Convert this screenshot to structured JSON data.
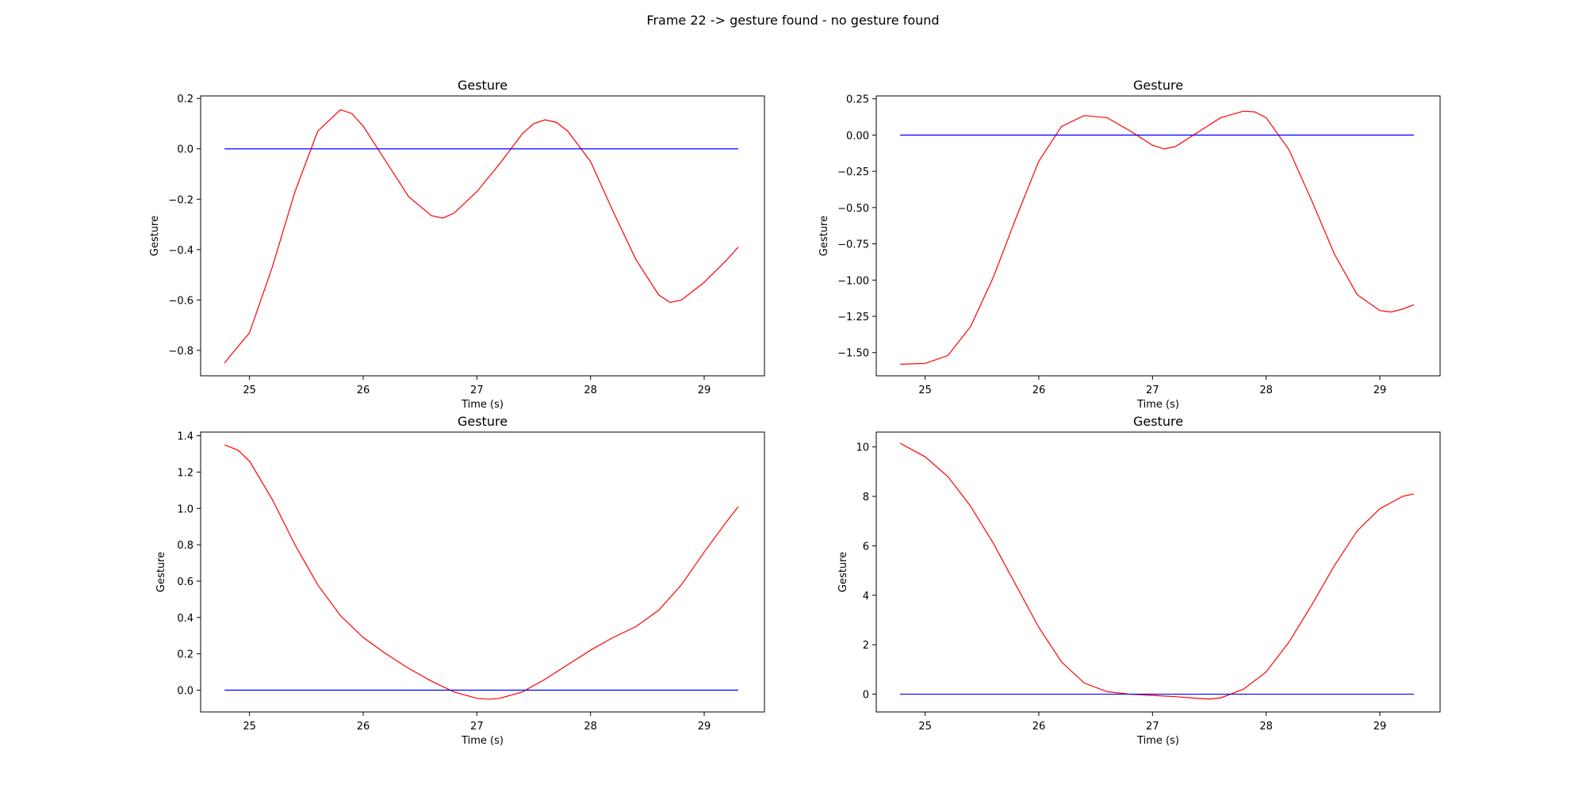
{
  "figure": {
    "suptitle": "Frame 22 -> gesture found - no gesture found"
  },
  "chart_data": [
    {
      "type": "line",
      "title": "Gesture",
      "xlabel": "Time (s)",
      "ylabel": "Gesture",
      "xlim": [
        24.57,
        29.53
      ],
      "ylim": [
        -0.901,
        0.21
      ],
      "xticks": [
        25,
        26,
        27,
        28,
        29
      ],
      "xtick_labels": [
        "25",
        "26",
        "27",
        "28",
        "29"
      ],
      "yticks": [
        -0.8,
        -0.6,
        -0.4,
        -0.2,
        0.0,
        0.2
      ],
      "ytick_labels": [
        "−0.8",
        "−0.6",
        "−0.4",
        "−0.2",
        "0.0",
        "0.2"
      ],
      "grid": false,
      "series": [
        {
          "color": "#ff0000",
          "x": [
            24.78,
            25.0,
            25.2,
            25.4,
            25.6,
            25.8,
            25.9,
            26.0,
            26.2,
            26.4,
            26.6,
            26.7,
            26.8,
            27.0,
            27.2,
            27.4,
            27.5,
            27.6,
            27.7,
            27.8,
            28.0,
            28.2,
            28.4,
            28.6,
            28.7,
            28.8,
            29.0,
            29.2,
            29.3
          ],
          "y": [
            -0.85,
            -0.73,
            -0.47,
            -0.17,
            0.07,
            0.155,
            0.14,
            0.09,
            -0.05,
            -0.19,
            -0.265,
            -0.275,
            -0.255,
            -0.17,
            -0.06,
            0.06,
            0.1,
            0.115,
            0.105,
            0.07,
            -0.05,
            -0.25,
            -0.44,
            -0.58,
            -0.61,
            -0.6,
            -0.53,
            -0.44,
            -0.39
          ]
        },
        {
          "color": "#0000ff",
          "x": [
            24.78,
            29.3
          ],
          "y": [
            0.0,
            0.0
          ]
        }
      ]
    },
    {
      "type": "line",
      "title": "Gesture",
      "xlabel": "Time (s)",
      "ylabel": "Gesture",
      "xlim": [
        24.57,
        29.53
      ],
      "ylim": [
        -1.66,
        0.27
      ],
      "xticks": [
        25,
        26,
        27,
        28,
        29
      ],
      "xtick_labels": [
        "25",
        "26",
        "27",
        "28",
        "29"
      ],
      "yticks": [
        -1.5,
        -1.25,
        -1.0,
        -0.75,
        -0.5,
        -0.25,
        0.0,
        0.25
      ],
      "ytick_labels": [
        "−1.50",
        "−1.25",
        "−1.00",
        "−0.75",
        "−0.50",
        "−0.25",
        "0.00",
        "0.25"
      ],
      "grid": false,
      "series": [
        {
          "color": "#ff0000",
          "x": [
            24.78,
            25.0,
            25.2,
            25.4,
            25.6,
            25.8,
            26.0,
            26.2,
            26.4,
            26.6,
            26.8,
            27.0,
            27.1,
            27.2,
            27.4,
            27.6,
            27.8,
            27.9,
            28.0,
            28.2,
            28.4,
            28.6,
            28.8,
            29.0,
            29.1,
            29.2,
            29.3
          ],
          "y": [
            -1.58,
            -1.575,
            -1.52,
            -1.32,
            -0.98,
            -0.57,
            -0.18,
            0.06,
            0.135,
            0.12,
            0.03,
            -0.07,
            -0.095,
            -0.08,
            0.02,
            0.12,
            0.165,
            0.16,
            0.12,
            -0.1,
            -0.45,
            -0.82,
            -1.1,
            -1.21,
            -1.22,
            -1.2,
            -1.17
          ]
        },
        {
          "color": "#0000ff",
          "x": [
            24.78,
            29.3
          ],
          "y": [
            0.0,
            0.0
          ]
        }
      ]
    },
    {
      "type": "line",
      "title": "Gesture",
      "xlabel": "Time (s)",
      "ylabel": "Gesture",
      "xlim": [
        24.57,
        29.53
      ],
      "ylim": [
        -0.12,
        1.42
      ],
      "xticks": [
        25,
        26,
        27,
        28,
        29
      ],
      "xtick_labels": [
        "25",
        "26",
        "27",
        "28",
        "29"
      ],
      "yticks": [
        0.0,
        0.2,
        0.4,
        0.6,
        0.8,
        1.0,
        1.2,
        1.4
      ],
      "ytick_labels": [
        "0.0",
        "0.2",
        "0.4",
        "0.6",
        "0.8",
        "1.0",
        "1.2",
        "1.4"
      ],
      "grid": false,
      "series": [
        {
          "color": "#ff0000",
          "x": [
            24.78,
            24.9,
            25.0,
            25.2,
            25.4,
            25.6,
            25.8,
            26.0,
            26.2,
            26.4,
            26.6,
            26.8,
            27.0,
            27.1,
            27.2,
            27.4,
            27.6,
            27.8,
            28.0,
            28.2,
            28.4,
            28.6,
            28.8,
            29.0,
            29.2,
            29.3
          ],
          "y": [
            1.35,
            1.32,
            1.26,
            1.05,
            0.8,
            0.58,
            0.41,
            0.29,
            0.2,
            0.12,
            0.05,
            -0.01,
            -0.045,
            -0.05,
            -0.045,
            -0.01,
            0.06,
            0.14,
            0.22,
            0.29,
            0.35,
            0.44,
            0.58,
            0.76,
            0.93,
            1.01
          ]
        },
        {
          "color": "#0000ff",
          "x": [
            24.78,
            29.3
          ],
          "y": [
            0.0,
            0.0
          ]
        }
      ]
    },
    {
      "type": "line",
      "title": "Gesture",
      "xlabel": "Time (s)",
      "ylabel": "Gesture",
      "xlim": [
        24.57,
        29.53
      ],
      "ylim": [
        -0.72,
        10.6
      ],
      "xticks": [
        25,
        26,
        27,
        28,
        29
      ],
      "xtick_labels": [
        "25",
        "26",
        "27",
        "28",
        "29"
      ],
      "yticks": [
        0,
        2,
        4,
        6,
        8,
        10
      ],
      "ytick_labels": [
        "0",
        "2",
        "4",
        "6",
        "8",
        "10"
      ],
      "grid": false,
      "series": [
        {
          "color": "#ff0000",
          "x": [
            24.78,
            25.0,
            25.2,
            25.4,
            25.6,
            25.8,
            26.0,
            26.2,
            26.4,
            26.6,
            26.8,
            27.0,
            27.2,
            27.4,
            27.5,
            27.6,
            27.8,
            28.0,
            28.2,
            28.4,
            28.6,
            28.8,
            29.0,
            29.2,
            29.3
          ],
          "y": [
            10.15,
            9.6,
            8.8,
            7.6,
            6.1,
            4.4,
            2.7,
            1.3,
            0.45,
            0.1,
            0.0,
            -0.05,
            -0.1,
            -0.17,
            -0.2,
            -0.15,
            0.2,
            0.9,
            2.1,
            3.6,
            5.2,
            6.6,
            7.5,
            8.0,
            8.1
          ]
        },
        {
          "color": "#0000ff",
          "x": [
            24.78,
            29.3
          ],
          "y": [
            0.0,
            0.0
          ]
        }
      ]
    }
  ]
}
